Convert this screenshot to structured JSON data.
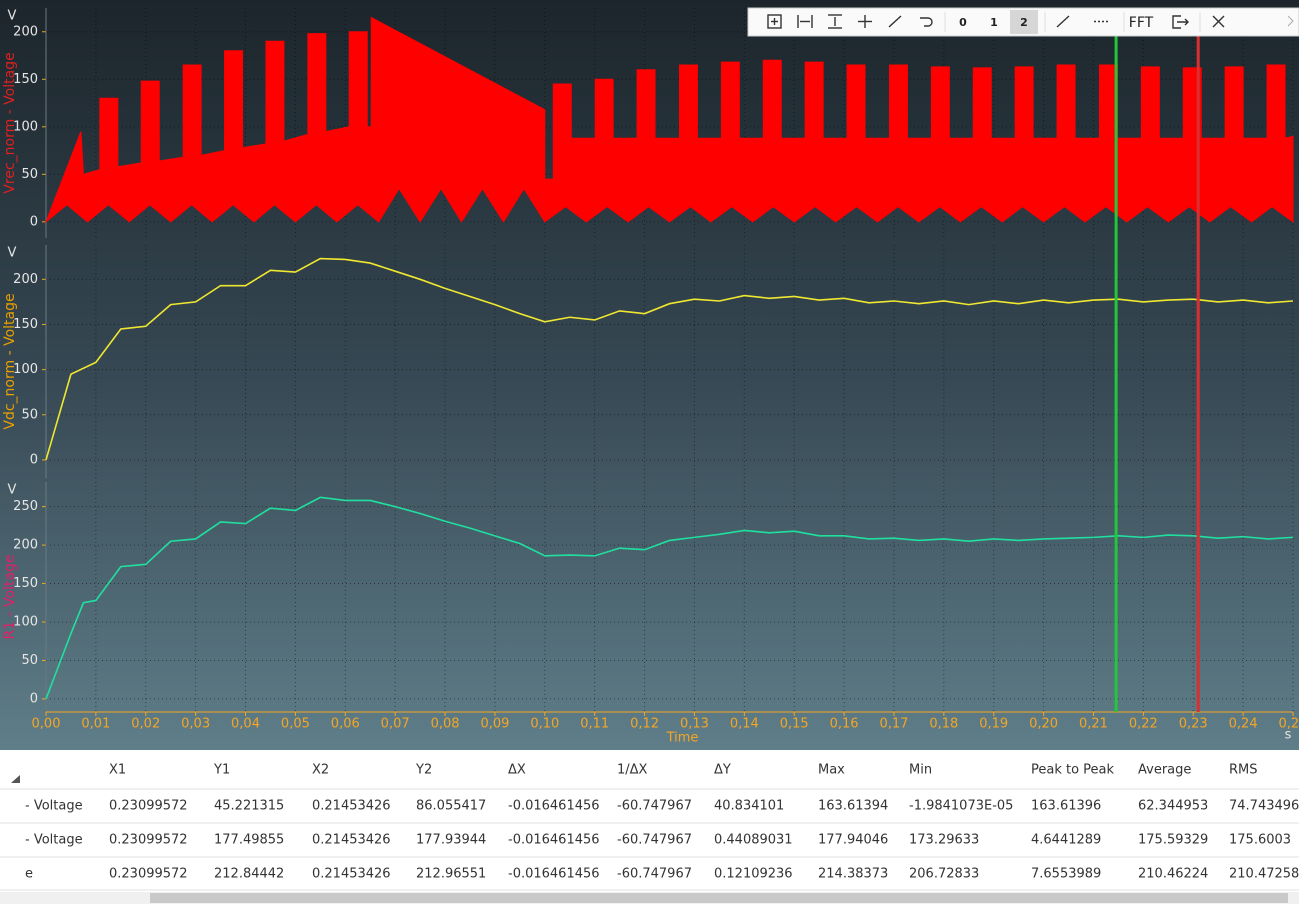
{
  "toolbar": {
    "buttons": [
      "0",
      "1",
      "2",
      "FFT"
    ]
  },
  "chart_data": [
    {
      "type": "area",
      "unit": "V",
      "ylabel": "Vrec_norm - Voltage",
      "label_color": "#e02020",
      "color": "#ff0000",
      "xlim": [
        0,
        0.25
      ],
      "ylim": [
        -17,
        225
      ],
      "yticks": [
        0,
        50,
        100,
        150,
        200
      ],
      "grid": true,
      "series": [
        {
          "x": [
            0,
            0.007,
            0.0075,
            0.0108,
            0.0108,
            0.0144,
            0.0144,
            0.0191,
            0.0191,
            0.0227,
            0.0227,
            0.0275,
            0.0275,
            0.0311,
            0.0311,
            0.0358,
            0.0358,
            0.0394,
            0.0394,
            0.0441,
            0.0441,
            0.0477,
            0.0477,
            0.0525,
            0.0525,
            0.0561,
            0.0561,
            0.0608,
            0.0608,
            0.0644,
            0.0644,
            0.0652,
            0.0652,
            0.1,
            0.1,
            0.1017,
            0.1017,
            0.1053,
            0.1053,
            0.1101,
            0.1101,
            0.1137,
            0.1137,
            0.1185,
            0.1185,
            0.1221,
            0.1221,
            0.127,
            0.127,
            0.1306,
            0.1306,
            0.1354,
            0.1354,
            0.139,
            0.139,
            0.1438,
            0.1438,
            0.1474,
            0.1474,
            0.1522,
            0.1522,
            0.1558,
            0.1558,
            0.1606,
            0.1606,
            0.1642,
            0.1642,
            0.1691,
            0.1691,
            0.1727,
            0.1727,
            0.1775,
            0.1775,
            0.1811,
            0.1811,
            0.1859,
            0.1859,
            0.1895,
            0.1895,
            0.1943,
            0.1943,
            0.1979,
            0.1979,
            0.2027,
            0.2027,
            0.2063,
            0.2063,
            0.2112,
            0.2112,
            0.2148,
            0.2148,
            0.2196,
            0.2196,
            0.2232,
            0.2232,
            0.228,
            0.228,
            0.2316,
            0.2316,
            0.2364,
            0.2364,
            0.24,
            0.24,
            0.2448,
            0.2448,
            0.2484,
            0.2484,
            0.25
          ],
          "values": [
            0,
            95,
            50,
            55,
            130,
            130,
            58,
            62,
            148,
            148,
            64,
            68,
            165,
            165,
            70,
            75,
            180,
            180,
            78,
            82,
            190,
            190,
            85,
            92,
            198,
            198,
            95,
            100,
            200,
            200,
            100,
            100,
            215,
            118,
            45,
            45,
            145,
            145,
            88,
            88,
            150,
            150,
            88,
            88,
            160,
            160,
            88,
            88,
            165,
            165,
            88,
            88,
            168,
            168,
            88,
            88,
            170,
            170,
            88,
            88,
            168,
            168,
            88,
            88,
            165,
            165,
            88,
            88,
            165,
            165,
            88,
            88,
            163,
            163,
            88,
            88,
            162,
            162,
            88,
            88,
            163,
            163,
            88,
            88,
            165,
            165,
            88,
            88,
            165,
            165,
            88,
            88,
            163,
            163,
            88,
            88,
            162,
            162,
            88,
            88,
            163,
            163,
            88,
            88,
            165,
            165,
            88,
            90
          ]
        },
        {
          "x": [
            0,
            0.0042,
            0.0083,
            0.0125,
            0.0167,
            0.0208,
            0.025,
            0.0292,
            0.0333,
            0.0375,
            0.0417,
            0.0458,
            0.05,
            0.0542,
            0.0583,
            0.0625,
            0.0667,
            0.0708,
            0.075,
            0.0792,
            0.0833,
            0.0875,
            0.0917,
            0.0958,
            0.1,
            0.1042,
            0.1083,
            0.1125,
            0.1167,
            0.1208,
            0.125,
            0.1292,
            0.1333,
            0.1375,
            0.1417,
            0.1458,
            0.15,
            0.1542,
            0.1583,
            0.1625,
            0.1667,
            0.1708,
            0.175,
            0.1792,
            0.1833,
            0.1875,
            0.1917,
            0.1958,
            0.2,
            0.2042,
            0.2083,
            0.2125,
            0.2167,
            0.2208,
            0.225,
            0.2292,
            0.2333,
            0.2375,
            0.2417,
            0.2458,
            0.25
          ],
          "values": [
            0,
            18,
            0,
            18,
            0,
            18,
            0,
            18,
            0,
            18,
            0,
            18,
            0,
            18,
            0,
            18,
            0,
            35,
            0,
            35,
            0,
            35,
            0,
            35,
            0,
            16,
            0,
            16,
            0,
            16,
            0,
            16,
            0,
            16,
            0,
            16,
            0,
            16,
            0,
            16,
            0,
            16,
            0,
            16,
            0,
            16,
            0,
            16,
            0,
            16,
            0,
            16,
            0,
            16,
            0,
            16,
            0,
            16,
            0,
            16,
            0
          ]
        }
      ]
    },
    {
      "type": "line",
      "unit": "V",
      "ylabel": "Vdc_norm - Voltage",
      "label_color": "#e8a000",
      "xlim": [
        0,
        0.25
      ],
      "ylim": [
        -20,
        238
      ],
      "yticks": [
        0,
        50,
        100,
        150,
        200
      ],
      "grid": true,
      "series": [
        {
          "color": "#f0e830",
          "x": [
            0,
            0.005,
            0.01,
            0.015,
            0.02,
            0.025,
            0.03,
            0.035,
            0.04,
            0.045,
            0.05,
            0.055,
            0.06,
            0.065,
            0.07,
            0.075,
            0.08,
            0.085,
            0.09,
            0.095,
            0.1,
            0.105,
            0.11,
            0.115,
            0.12,
            0.125,
            0.13,
            0.135,
            0.14,
            0.145,
            0.15,
            0.155,
            0.16,
            0.165,
            0.17,
            0.175,
            0.18,
            0.185,
            0.19,
            0.195,
            0.2,
            0.205,
            0.21,
            0.215,
            0.22,
            0.225,
            0.23,
            0.235,
            0.24,
            0.245,
            0.25
          ],
          "values": [
            0,
            95,
            108,
            145,
            148,
            172,
            175,
            193,
            193,
            210,
            208,
            223,
            222,
            218,
            209,
            200,
            190,
            181,
            172,
            162,
            153,
            158,
            155,
            165,
            162,
            173,
            178,
            176,
            182,
            179,
            181,
            177,
            179,
            174,
            176,
            173,
            176,
            172,
            176,
            173,
            177,
            174,
            177,
            178,
            175,
            177,
            178,
            175,
            177,
            174,
            176
          ]
        }
      ]
    },
    {
      "type": "line",
      "unit": "V",
      "ylabel": "R1 - Voltage",
      "label_color": "#e0206a",
      "xlabel": "Time",
      "xunit": "s",
      "xlim": [
        0,
        0.25
      ],
      "ylim": [
        -17,
        282
      ],
      "yticks": [
        0,
        50,
        100,
        150,
        200,
        250
      ],
      "grid": true,
      "xticks": [
        {
          "value": 0,
          "label": "0,00"
        },
        {
          "value": 0.01,
          "label": "0,01"
        },
        {
          "value": 0.02,
          "label": "0,02"
        },
        {
          "value": 0.03,
          "label": "0,03"
        },
        {
          "value": 0.04,
          "label": "0,04"
        },
        {
          "value": 0.05,
          "label": "0,05"
        },
        {
          "value": 0.06,
          "label": "0,06"
        },
        {
          "value": 0.07,
          "label": "0,07"
        },
        {
          "value": 0.08,
          "label": "0,08"
        },
        {
          "value": 0.09,
          "label": "0,09"
        },
        {
          "value": 0.1,
          "label": "0,10"
        },
        {
          "value": 0.11,
          "label": "0,11"
        },
        {
          "value": 0.12,
          "label": "0,12"
        },
        {
          "value": 0.13,
          "label": "0,13"
        },
        {
          "value": 0.14,
          "label": "0,14"
        },
        {
          "value": 0.15,
          "label": "0,15"
        },
        {
          "value": 0.16,
          "label": "0,16"
        },
        {
          "value": 0.17,
          "label": "0,17"
        },
        {
          "value": 0.18,
          "label": "0,18"
        },
        {
          "value": 0.19,
          "label": "0,19"
        },
        {
          "value": 0.2,
          "label": "0,20"
        },
        {
          "value": 0.21,
          "label": "0,21"
        },
        {
          "value": 0.22,
          "label": "0,22"
        },
        {
          "value": 0.23,
          "label": "0,23"
        },
        {
          "value": 0.24,
          "label": "0,24"
        },
        {
          "value": 0.25,
          "label": "0,25"
        }
      ],
      "series": [
        {
          "color": "#20e0a0",
          "x": [
            0,
            0.005,
            0.0075,
            0.01,
            0.015,
            0.02,
            0.025,
            0.03,
            0.035,
            0.04,
            0.045,
            0.05,
            0.055,
            0.06,
            0.065,
            0.07,
            0.075,
            0.08,
            0.085,
            0.09,
            0.095,
            0.1,
            0.105,
            0.11,
            0.115,
            0.12,
            0.125,
            0.13,
            0.135,
            0.14,
            0.145,
            0.15,
            0.155,
            0.16,
            0.165,
            0.17,
            0.175,
            0.18,
            0.185,
            0.19,
            0.195,
            0.2,
            0.205,
            0.21,
            0.215,
            0.22,
            0.225,
            0.23,
            0.235,
            0.24,
            0.245,
            0.25
          ],
          "values": [
            0,
            85,
            125,
            128,
            172,
            175,
            205,
            208,
            230,
            228,
            248,
            245,
            262,
            258,
            258,
            250,
            241,
            231,
            222,
            212,
            202,
            186,
            187,
            186,
            196,
            194,
            206,
            210,
            214,
            219,
            216,
            218,
            212,
            212,
            208,
            209,
            206,
            208,
            205,
            208,
            206,
            208,
            209,
            210,
            212,
            210,
            213,
            212,
            209,
            211,
            208,
            210
          ]
        }
      ]
    }
  ],
  "cursors": [
    {
      "x": 0.21453426,
      "color": "#22c83a"
    },
    {
      "x": 0.23099572,
      "color": "#d83030"
    }
  ],
  "table": {
    "header": [
      "X1",
      "Y1",
      "X2",
      "Y2",
      "ΔX",
      "1/ΔX",
      "ΔY",
      "Max",
      "Min",
      "Peak to Peak",
      "Average",
      "RMS"
    ],
    "rows": [
      [
        "- Voltage",
        "0.23099572",
        "45.221315",
        "0.21453426",
        "86.055417",
        "-0.016461456",
        "-60.747967",
        "40.834101",
        "163.61394",
        "-1.9841073E-05",
        "163.61396",
        "62.344953",
        "74.743496"
      ],
      [
        "- Voltage",
        "0.23099572",
        "177.49855",
        "0.21453426",
        "177.93944",
        "-0.016461456",
        "-60.747967",
        "0.44089031",
        "177.94046",
        "173.29633",
        "4.6441289",
        "175.59329",
        "175.6003"
      ],
      [
        "e",
        "0.23099572",
        "212.84442",
        "0.21453426",
        "212.96551",
        "-0.016461456",
        "-60.747967",
        "0.12109236",
        "214.38373",
        "206.72833",
        "7.6553989",
        "210.46224",
        "210.47258"
      ]
    ]
  }
}
